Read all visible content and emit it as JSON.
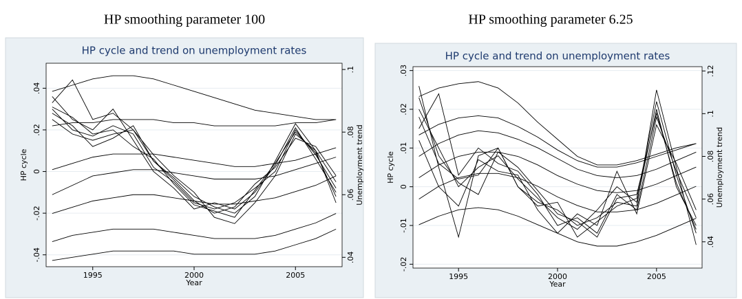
{
  "chart_data": [
    {
      "type": "line",
      "heading": "HP smoothing parameter 100",
      "title": "HP cycle and trend on unemployment rates",
      "x_label": "Year",
      "y_label": "HP cycle",
      "y2_label": "Unemployment trend",
      "grid": true,
      "x": [
        1993,
        1994,
        1995,
        1996,
        1997,
        1998,
        1999,
        2000,
        2001,
        2002,
        2003,
        2004,
        2005,
        2006,
        2007
      ],
      "xlim": [
        1992.7,
        2007.3
      ],
      "xticks": [
        1995,
        2000,
        2005
      ],
      "ylim": [
        -0.0457,
        0.052
      ],
      "yticks": [
        {
          "value": -0.04,
          "label": "-.04"
        },
        {
          "value": -0.02,
          "label": "-.02"
        },
        0,
        {
          "value": 0.02,
          "label": ".02"
        },
        {
          "value": 0.04,
          "label": ".04"
        }
      ],
      "y2lim": [
        0.037,
        0.102
      ],
      "y2ticks": [
        {
          "value": 0.04,
          "label": ".04"
        },
        {
          "value": 0.06,
          "label": ".06"
        },
        {
          "value": 0.08,
          "label": ".08"
        },
        {
          "value": 0.1,
          "label": ".1"
        }
      ],
      "series": [
        {
          "color": "#000000",
          "values": [
            0.033,
            0.044,
            0.025,
            0.028,
            0.02,
            0.005,
            -0.003,
            -0.012,
            -0.017,
            -0.02,
            -0.012,
            0.005,
            0.023,
            0.01,
            -0.015
          ]
        },
        {
          "color": "#000000",
          "values": [
            0.03,
            0.02,
            0.017,
            0.022,
            0.018,
            0.002,
            -0.005,
            -0.015,
            -0.018,
            -0.015,
            -0.008,
            0.0,
            0.02,
            0.008,
            -0.008
          ]
        },
        {
          "color": "#000000",
          "values": [
            0.025,
            0.018,
            0.015,
            0.018,
            0.02,
            0.008,
            -0.002,
            -0.01,
            -0.022,
            -0.025,
            -0.015,
            -0.002,
            0.018,
            0.01,
            -0.005
          ]
        },
        {
          "color": "#000000",
          "values": [
            0.036,
            0.025,
            0.02,
            0.03,
            0.015,
            0.0,
            -0.008,
            -0.018,
            -0.015,
            -0.018,
            -0.01,
            0.003,
            0.021,
            0.006,
            -0.01
          ]
        },
        {
          "color": "#000000",
          "values": [
            0.028,
            0.022,
            0.012,
            0.016,
            0.022,
            0.005,
            -0.004,
            -0.014,
            -0.02,
            -0.017,
            -0.006,
            0.002,
            0.016,
            0.012,
            -0.002
          ]
        },
        {
          "color": "#000000",
          "values": [
            0.031,
            0.026,
            0.018,
            0.02,
            0.012,
            0.006,
            -0.006,
            -0.016,
            -0.019,
            -0.022,
            -0.009,
            0.004,
            0.019,
            0.009,
            -0.012
          ]
        },
        {
          "color": "#000000",
          "axis": "y2",
          "values": [
            0.093,
            0.095,
            0.097,
            0.098,
            0.098,
            0.097,
            0.095,
            0.093,
            0.091,
            0.089,
            0.087,
            0.086,
            0.085,
            0.084,
            0.084
          ]
        },
        {
          "color": "#000000",
          "axis": "y2",
          "values": [
            0.082,
            0.083,
            0.083,
            0.084,
            0.084,
            0.084,
            0.083,
            0.083,
            0.082,
            0.082,
            0.082,
            0.082,
            0.083,
            0.083,
            0.084
          ]
        },
        {
          "color": "#000000",
          "axis": "y2",
          "values": [
            0.068,
            0.07,
            0.072,
            0.073,
            0.073,
            0.073,
            0.072,
            0.071,
            0.07,
            0.069,
            0.069,
            0.07,
            0.071,
            0.073,
            0.075
          ]
        },
        {
          "color": "#000000",
          "axis": "y2",
          "values": [
            0.06,
            0.063,
            0.066,
            0.067,
            0.068,
            0.068,
            0.067,
            0.066,
            0.065,
            0.065,
            0.065,
            0.066,
            0.068,
            0.07,
            0.072
          ]
        },
        {
          "color": "#000000",
          "axis": "y2",
          "values": [
            0.054,
            0.056,
            0.058,
            0.059,
            0.06,
            0.06,
            0.059,
            0.058,
            0.057,
            0.057,
            0.058,
            0.059,
            0.061,
            0.063,
            0.066
          ]
        },
        {
          "color": "#000000",
          "axis": "y2",
          "values": [
            0.045,
            0.047,
            0.048,
            0.049,
            0.049,
            0.049,
            0.048,
            0.047,
            0.046,
            0.046,
            0.046,
            0.047,
            0.049,
            0.051,
            0.054
          ]
        },
        {
          "color": "#000000",
          "axis": "y2",
          "values": [
            0.039,
            0.04,
            0.041,
            0.042,
            0.042,
            0.042,
            0.042,
            0.041,
            0.041,
            0.041,
            0.041,
            0.042,
            0.044,
            0.046,
            0.049
          ]
        }
      ]
    },
    {
      "type": "line",
      "heading": "HP smoothing parameter 6.25",
      "title": "HP cycle and trend on unemployment rates",
      "x_label": "Year",
      "y_label": "HP cycle",
      "y2_label": "Unemployment trend",
      "grid": true,
      "x": [
        1993,
        1994,
        1995,
        1996,
        1997,
        1998,
        1999,
        2000,
        2001,
        2002,
        2003,
        2004,
        2005,
        2006,
        2007
      ],
      "xlim": [
        1992.7,
        2007.3
      ],
      "xticks": [
        1995,
        2000,
        2005
      ],
      "ylim": [
        -0.021,
        0.031
      ],
      "yticks": [
        {
          "value": -0.02,
          "label": "-.02"
        },
        {
          "value": -0.01,
          "label": "-.01"
        },
        0,
        {
          "value": 0.01,
          "label": ".01"
        },
        {
          "value": 0.02,
          "label": ".02"
        },
        {
          "value": 0.03,
          "label": ".03"
        }
      ],
      "y2lim": [
        0.0277,
        0.122
      ],
      "y2ticks": [
        {
          "value": 0.04,
          "label": ".04"
        },
        {
          "value": 0.06,
          "label": ".06"
        },
        {
          "value": 0.08,
          "label": ".08"
        },
        {
          "value": 0.1,
          "label": ".1"
        },
        {
          "value": 0.12,
          "label": ".12"
        }
      ],
      "series": [
        {
          "color": "#000000",
          "values": [
            0.026,
            0.005,
            -0.013,
            0.008,
            0.01,
            0.0,
            -0.004,
            -0.006,
            -0.01,
            -0.008,
            -0.004,
            -0.005,
            0.025,
            0.005,
            -0.015
          ]
        },
        {
          "color": "#000000",
          "values": [
            0.02,
            0.01,
            0.0,
            0.005,
            0.008,
            0.002,
            -0.003,
            -0.008,
            -0.011,
            -0.006,
            0.0,
            -0.004,
            0.02,
            0.0,
            -0.01
          ]
        },
        {
          "color": "#000000",
          "values": [
            0.015,
            0.024,
            0.003,
            0.01,
            0.006,
            0.004,
            -0.002,
            -0.01,
            -0.008,
            -0.012,
            -0.002,
            -0.006,
            0.018,
            0.004,
            -0.008
          ]
        },
        {
          "color": "#000000",
          "values": [
            0.018,
            0.006,
            0.002,
            0.003,
            0.01,
            0.0,
            -0.005,
            -0.004,
            -0.013,
            -0.009,
            -0.005,
            -0.003,
            0.022,
            0.003,
            -0.012
          ]
        },
        {
          "color": "#000000",
          "values": [
            0.012,
            0.0,
            -0.005,
            0.007,
            0.004,
            0.003,
            -0.006,
            -0.012,
            -0.007,
            -0.01,
            0.004,
            -0.007,
            0.016,
            0.006,
            -0.006
          ]
        },
        {
          "color": "#000000",
          "values": [
            0.023,
            0.008,
            0.001,
            -0.002,
            0.009,
            0.005,
            -0.001,
            -0.007,
            -0.009,
            -0.013,
            -0.003,
            -0.002,
            0.019,
            0.001,
            -0.011
          ]
        },
        {
          "color": "#000000",
          "axis": "y2",
          "values": [
            0.108,
            0.112,
            0.114,
            0.115,
            0.112,
            0.105,
            0.096,
            0.088,
            0.08,
            0.076,
            0.076,
            0.078,
            0.081,
            0.084,
            0.086
          ]
        },
        {
          "color": "#000000",
          "axis": "y2",
          "values": [
            0.09,
            0.095,
            0.098,
            0.099,
            0.098,
            0.094,
            0.089,
            0.083,
            0.078,
            0.075,
            0.075,
            0.077,
            0.08,
            0.083,
            0.086
          ]
        },
        {
          "color": "#000000",
          "axis": "y2",
          "values": [
            0.08,
            0.086,
            0.09,
            0.092,
            0.091,
            0.088,
            0.084,
            0.079,
            0.074,
            0.071,
            0.07,
            0.071,
            0.074,
            0.078,
            0.082
          ]
        },
        {
          "color": "#000000",
          "axis": "y2",
          "values": [
            0.07,
            0.076,
            0.08,
            0.082,
            0.082,
            0.08,
            0.076,
            0.071,
            0.067,
            0.064,
            0.063,
            0.064,
            0.067,
            0.071,
            0.075
          ]
        },
        {
          "color": "#000000",
          "axis": "y2",
          "values": [
            0.06,
            0.066,
            0.07,
            0.072,
            0.072,
            0.07,
            0.066,
            0.061,
            0.057,
            0.054,
            0.054,
            0.055,
            0.058,
            0.062,
            0.066
          ]
        },
        {
          "color": "#000000",
          "axis": "y2",
          "values": [
            0.048,
            0.052,
            0.055,
            0.056,
            0.055,
            0.052,
            0.048,
            0.044,
            0.04,
            0.038,
            0.038,
            0.04,
            0.043,
            0.047,
            0.051
          ]
        }
      ]
    }
  ]
}
